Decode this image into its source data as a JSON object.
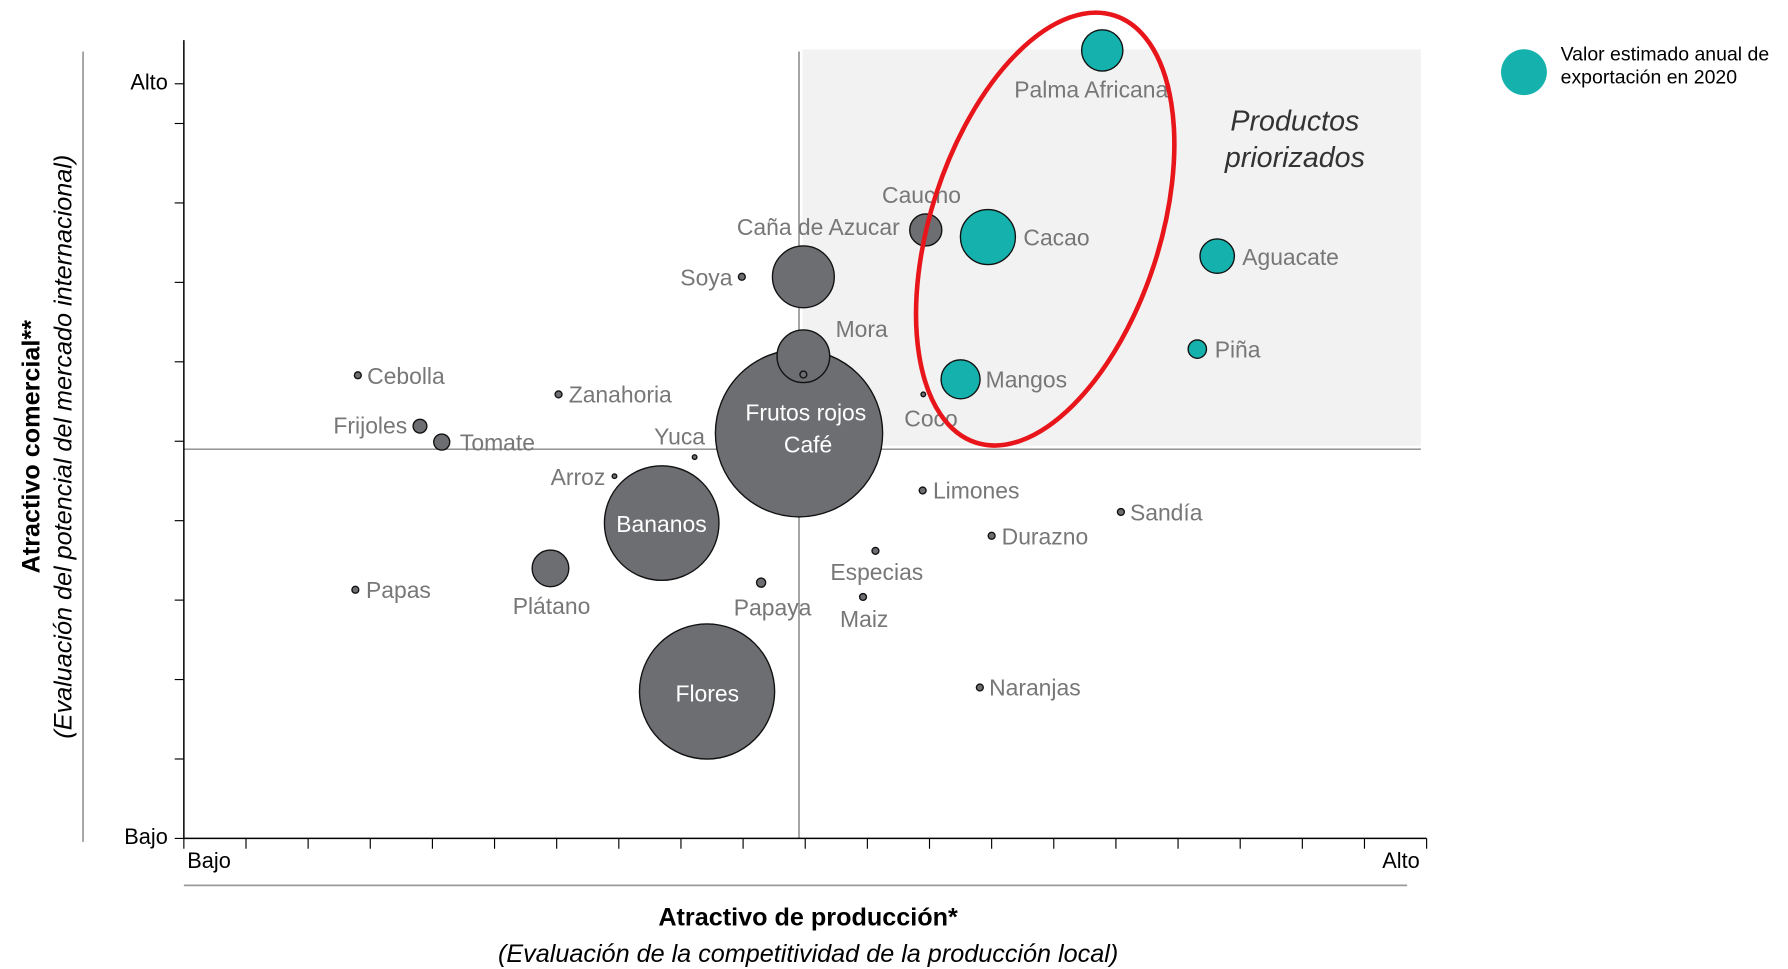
{
  "chart_data": {
    "type": "scatter",
    "x_label": "Atractivo de producción*",
    "x_sublabel": "(Evaluación de la competitividad de la producción local)",
    "y_label": "Atractivo comercial**",
    "y_sublabel": "(Evaluación del potencial del mercado internacional)",
    "annotation": "Productos priorizados",
    "xlim": [
      0,
      20
    ],
    "xticks": [
      {
        "value": 0,
        "label": "Bajo"
      },
      1,
      2,
      3,
      4,
      5,
      6,
      7,
      8,
      9,
      10,
      11,
      12,
      13,
      14,
      15,
      16,
      17,
      18,
      19,
      {
        "value": 20,
        "label": "Alto"
      }
    ],
    "ylim": [
      0,
      10.05
    ],
    "yticks": [
      {
        "value": 0,
        "label": "Bajo"
      },
      1,
      2,
      3,
      4,
      5,
      6,
      7,
      8,
      9,
      {
        "value": 9.5,
        "label": "Alto"
      }
    ],
    "numeric_tick_labels": false,
    "divider_x": 9.9,
    "divider_y": 4.9,
    "legend": "top-right",
    "series": [
      {
        "name": "Valor estimado anual de exportación en 2020",
        "color": "#14b1ad",
        "labels": [
          "Palma Africana",
          "Cacao",
          "Aguacate",
          "Piña",
          "Mangos"
        ],
        "x": [
          14.78,
          12.94,
          16.63,
          16.31,
          12.5
        ],
        "values": [
          9.92,
          7.57,
          7.33,
          6.16,
          5.78
        ],
        "sizes": [
          18,
          24,
          15,
          8,
          17
        ]
      },
      {
        "color": "#6d6e71",
        "labels": [
          "Caucho",
          "Caña de Azucar",
          "Soya",
          "Café",
          "Mora",
          "Frutos rojos",
          "Coco",
          "Cebolla",
          "Zanahoria",
          "Frijoles",
          "Tomate",
          "Yuca",
          "Arroz",
          "Bananos",
          "Plátano",
          "Papas",
          "Papaya",
          "Especias",
          "Maiz",
          "Flores",
          "Limones",
          "Durazno",
          "Sandía",
          "Naranjas"
        ],
        "x": [
          11.94,
          9.97,
          8.98,
          9.9,
          9.97,
          9.97,
          11.9,
          2.8,
          6.03,
          3.8,
          4.15,
          8.22,
          6.93,
          7.69,
          5.9,
          2.76,
          9.29,
          11.13,
          10.93,
          8.42,
          11.89,
          13.0,
          15.08,
          12.81
        ],
        "values": [
          7.66,
          7.07,
          7.07,
          5.1,
          6.07,
          5.84,
          5.59,
          5.83,
          5.59,
          5.19,
          4.99,
          4.8,
          4.56,
          3.97,
          3.4,
          3.13,
          3.22,
          3.62,
          3.04,
          1.85,
          4.38,
          3.81,
          4.11,
          1.9
        ],
        "sizes": [
          14,
          27,
          3,
          73,
          23,
          3,
          2,
          3,
          3,
          6,
          7,
          2,
          2,
          50,
          16,
          3,
          4,
          3,
          3,
          59,
          3,
          3,
          3,
          3
        ]
      }
    ]
  }
}
